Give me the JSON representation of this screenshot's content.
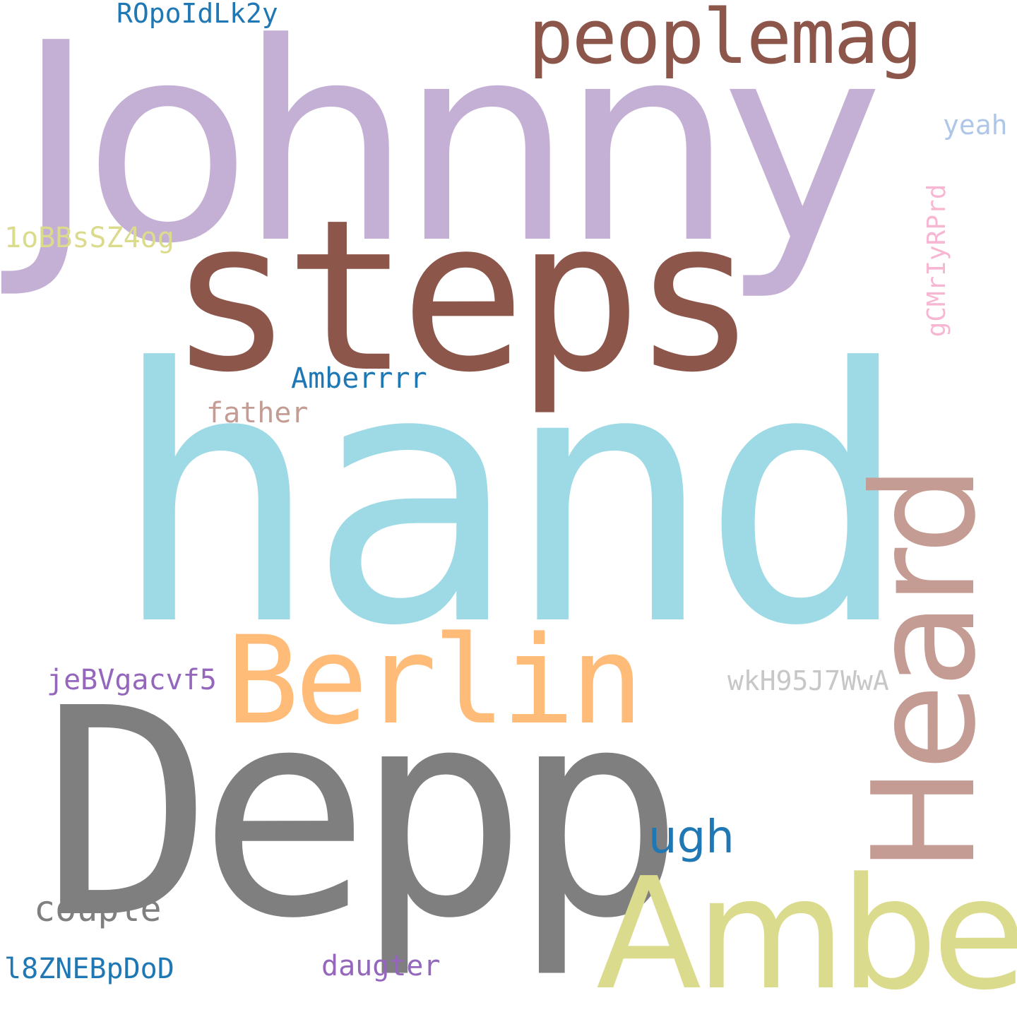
{
  "wordcloud": {
    "background": "#ffffff",
    "words": [
      {
        "text": "Johnny",
        "color": "#c5b0d5"
      },
      {
        "text": "steps",
        "color": "#8c564b"
      },
      {
        "text": "hand",
        "color": "#9edae5"
      },
      {
        "text": "Depp",
        "color": "#7f7f7f"
      },
      {
        "text": "Berlin",
        "color": "#ffbb78"
      },
      {
        "text": "Amber",
        "color": "#dbdb8d"
      },
      {
        "text": "Heard",
        "color": "#c49c94"
      },
      {
        "text": "peoplemag",
        "color": "#8c564b"
      },
      {
        "text": "ROpoIdLk2y",
        "color": "#1f77b4"
      },
      {
        "text": "yeah",
        "color": "#aec7e8"
      },
      {
        "text": "1oBBsSZ4og",
        "color": "#dbdb8d"
      },
      {
        "text": "gCMrIyRPrd",
        "color": "#f7b6d2"
      },
      {
        "text": "Amberrrr",
        "color": "#1f77b4"
      },
      {
        "text": "father",
        "color": "#c49c94"
      },
      {
        "text": "jeBVgacvf5",
        "color": "#9467bd"
      },
      {
        "text": "wkH95J7WwA",
        "color": "#c7c7c7"
      },
      {
        "text": "ugh",
        "color": "#1f77b4"
      },
      {
        "text": "couple",
        "color": "#7f7f7f"
      },
      {
        "text": "l8ZNEBpDoD",
        "color": "#1f77b4"
      },
      {
        "text": "daugter",
        "color": "#9467bd"
      }
    ]
  }
}
